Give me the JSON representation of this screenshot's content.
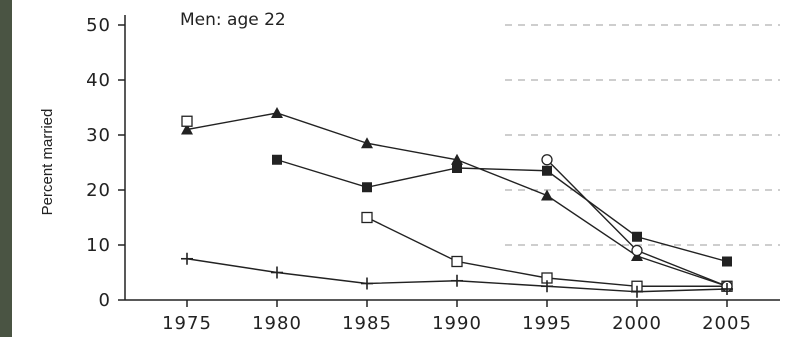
{
  "chart_data": {
    "type": "line",
    "title": "Men: age 22",
    "xlabel": "",
    "ylabel": "Percent married",
    "x": [
      1975,
      1980,
      1985,
      1990,
      1995,
      2000,
      2005
    ],
    "ylim": [
      0,
      50
    ],
    "yticks": [
      0,
      10,
      20,
      30,
      40,
      50
    ],
    "grid": "horizontal dashed (right portion)",
    "series": [
      {
        "marker": "triangle",
        "values": [
          31,
          34,
          28.5,
          25.5,
          19,
          8,
          2.5
        ]
      },
      {
        "marker": "filled-square",
        "values": [
          null,
          25.5,
          20.5,
          24,
          23.5,
          11.5,
          7
        ]
      },
      {
        "marker": "open-square",
        "values": [
          32.5,
          null,
          15,
          7,
          4,
          2.5,
          2.5
        ]
      },
      {
        "marker": "open-circle",
        "values": [
          null,
          null,
          null,
          null,
          25.5,
          9,
          2.5
        ]
      },
      {
        "marker": "plus",
        "values": [
          7.5,
          5,
          3,
          3.5,
          2.5,
          1.5,
          2
        ]
      }
    ]
  },
  "colors": {
    "line": "#222222",
    "grid": "#b0b0b0",
    "strip": "#4a5443"
  }
}
